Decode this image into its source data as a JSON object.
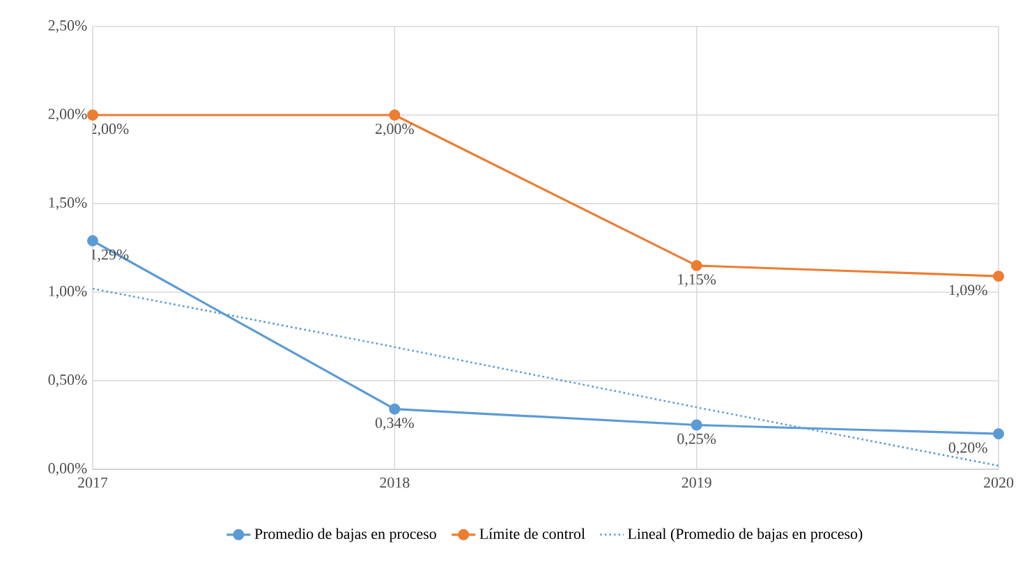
{
  "chart_data": {
    "type": "line",
    "categories": [
      "2017",
      "2018",
      "2019",
      "2020"
    ],
    "series": [
      {
        "name": "Promedio de bajas en proceso",
        "color": "#5b9bd5",
        "values": [
          1.29,
          0.34,
          0.25,
          0.2
        ],
        "value_labels": [
          "1,29%",
          "0,34%",
          "0,25%",
          "0,20%"
        ],
        "marker": "circle",
        "line_style": "solid"
      },
      {
        "name": "Límite de control",
        "color": "#ed7d31",
        "values": [
          2.0,
          2.0,
          1.15,
          1.09
        ],
        "value_labels": [
          "2,00%",
          "2,00%",
          "1,15%",
          "1,09%"
        ],
        "marker": "circle",
        "line_style": "solid"
      },
      {
        "name": "Lineal (Promedio de bajas en proceso)",
        "color": "#5b9bd5",
        "values": [
          1.02,
          0.69,
          0.35,
          0.02
        ],
        "marker": "none",
        "line_style": "dotted"
      }
    ],
    "ylim": [
      0,
      2.5
    ],
    "yticks": [
      {
        "value": 0,
        "label": "0,00%"
      },
      {
        "value": 0.5,
        "label": "0,50%"
      },
      {
        "value": 1,
        "label": "1,00%"
      },
      {
        "value": 1.5,
        "label": "1,50%"
      },
      {
        "value": 2,
        "label": "2,00%"
      },
      {
        "value": 2.5,
        "label": "2,50%"
      }
    ],
    "grid": true,
    "legend": "bottom"
  }
}
